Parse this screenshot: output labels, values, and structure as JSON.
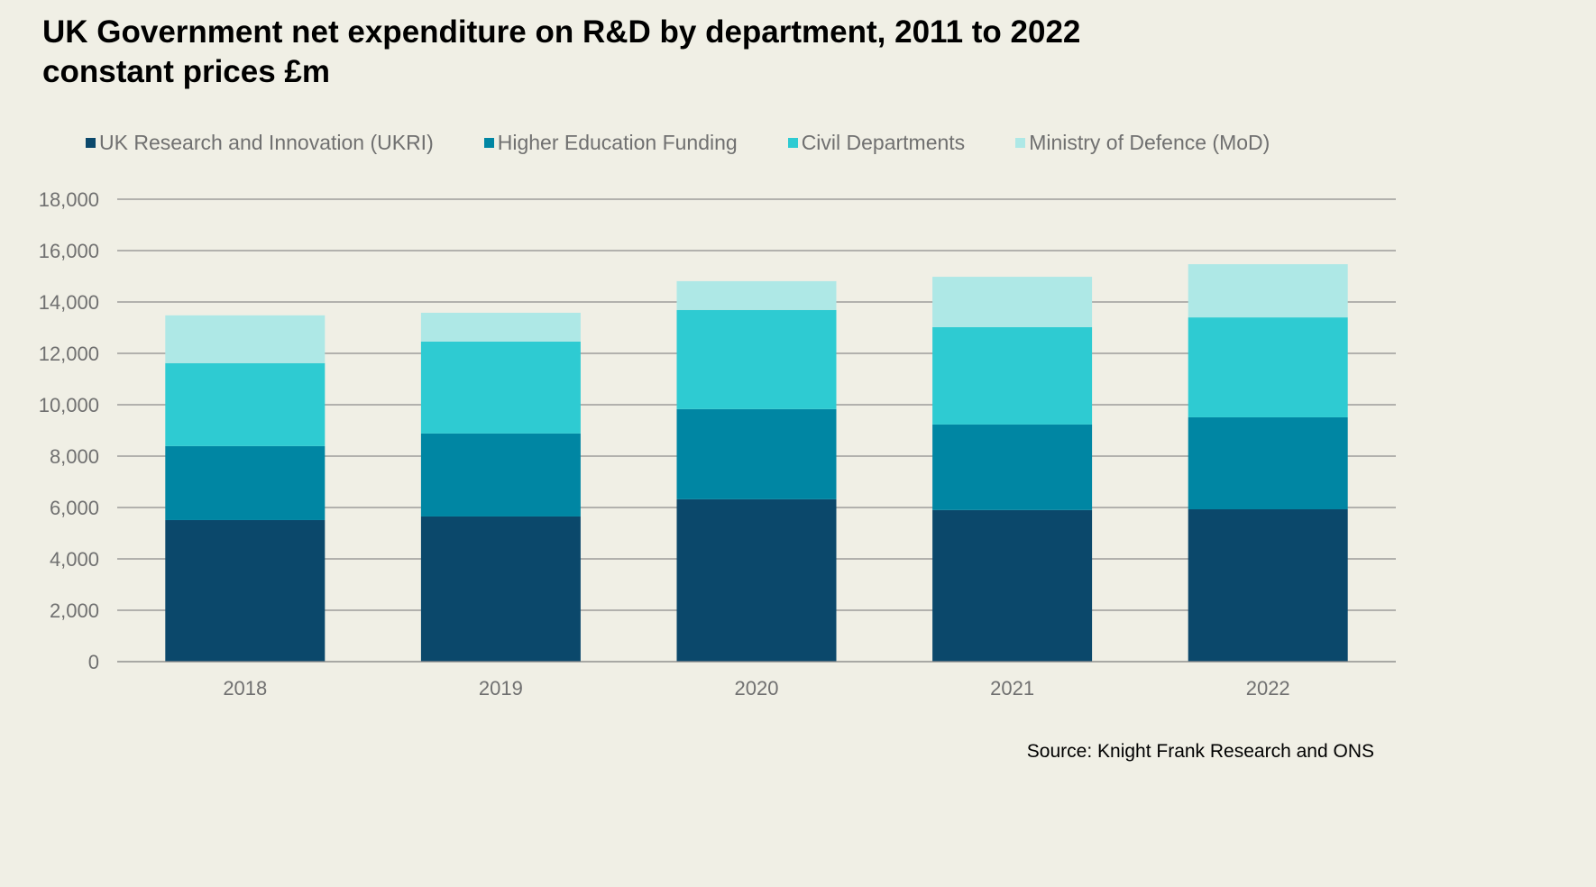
{
  "chart_data": {
    "type": "bar",
    "stacked": true,
    "title": "UK Government net expenditure on R&D by department, 2011 to 2022",
    "subtitle": "constant prices £m",
    "xlabel": "",
    "ylabel": "",
    "categories": [
      "2018",
      "2019",
      "2020",
      "2021",
      "2022"
    ],
    "series": [
      {
        "name": "UK Research and Innovation (UKRI)",
        "color": "#0b486b",
        "values": [
          5510,
          5650,
          6320,
          5900,
          5930
        ]
      },
      {
        "name": "Higher Education Funding",
        "color": "#0086a3",
        "values": [
          2880,
          3230,
          3510,
          3330,
          3580
        ]
      },
      {
        "name": "Civil Departments",
        "color": "#2ecbd2",
        "values": [
          3230,
          3580,
          3860,
          3790,
          3890
        ]
      },
      {
        "name": "Ministry of Defence (MoD)",
        "color": "#aee8e6",
        "values": [
          1860,
          1120,
          1120,
          1960,
          2070
        ]
      }
    ],
    "ylim": [
      0,
      18000
    ],
    "yticks": [
      0,
      2000,
      4000,
      6000,
      8000,
      10000,
      12000,
      14000,
      16000,
      18000
    ],
    "ytick_labels": [
      "0",
      "2,000",
      "4,000",
      "6,000",
      "8,000",
      "10,000",
      "12,000",
      "14,000",
      "16,000",
      "18,000"
    ],
    "grid": true,
    "legend_position": "top",
    "source": "Source: Knight Frank Research and ONS"
  }
}
